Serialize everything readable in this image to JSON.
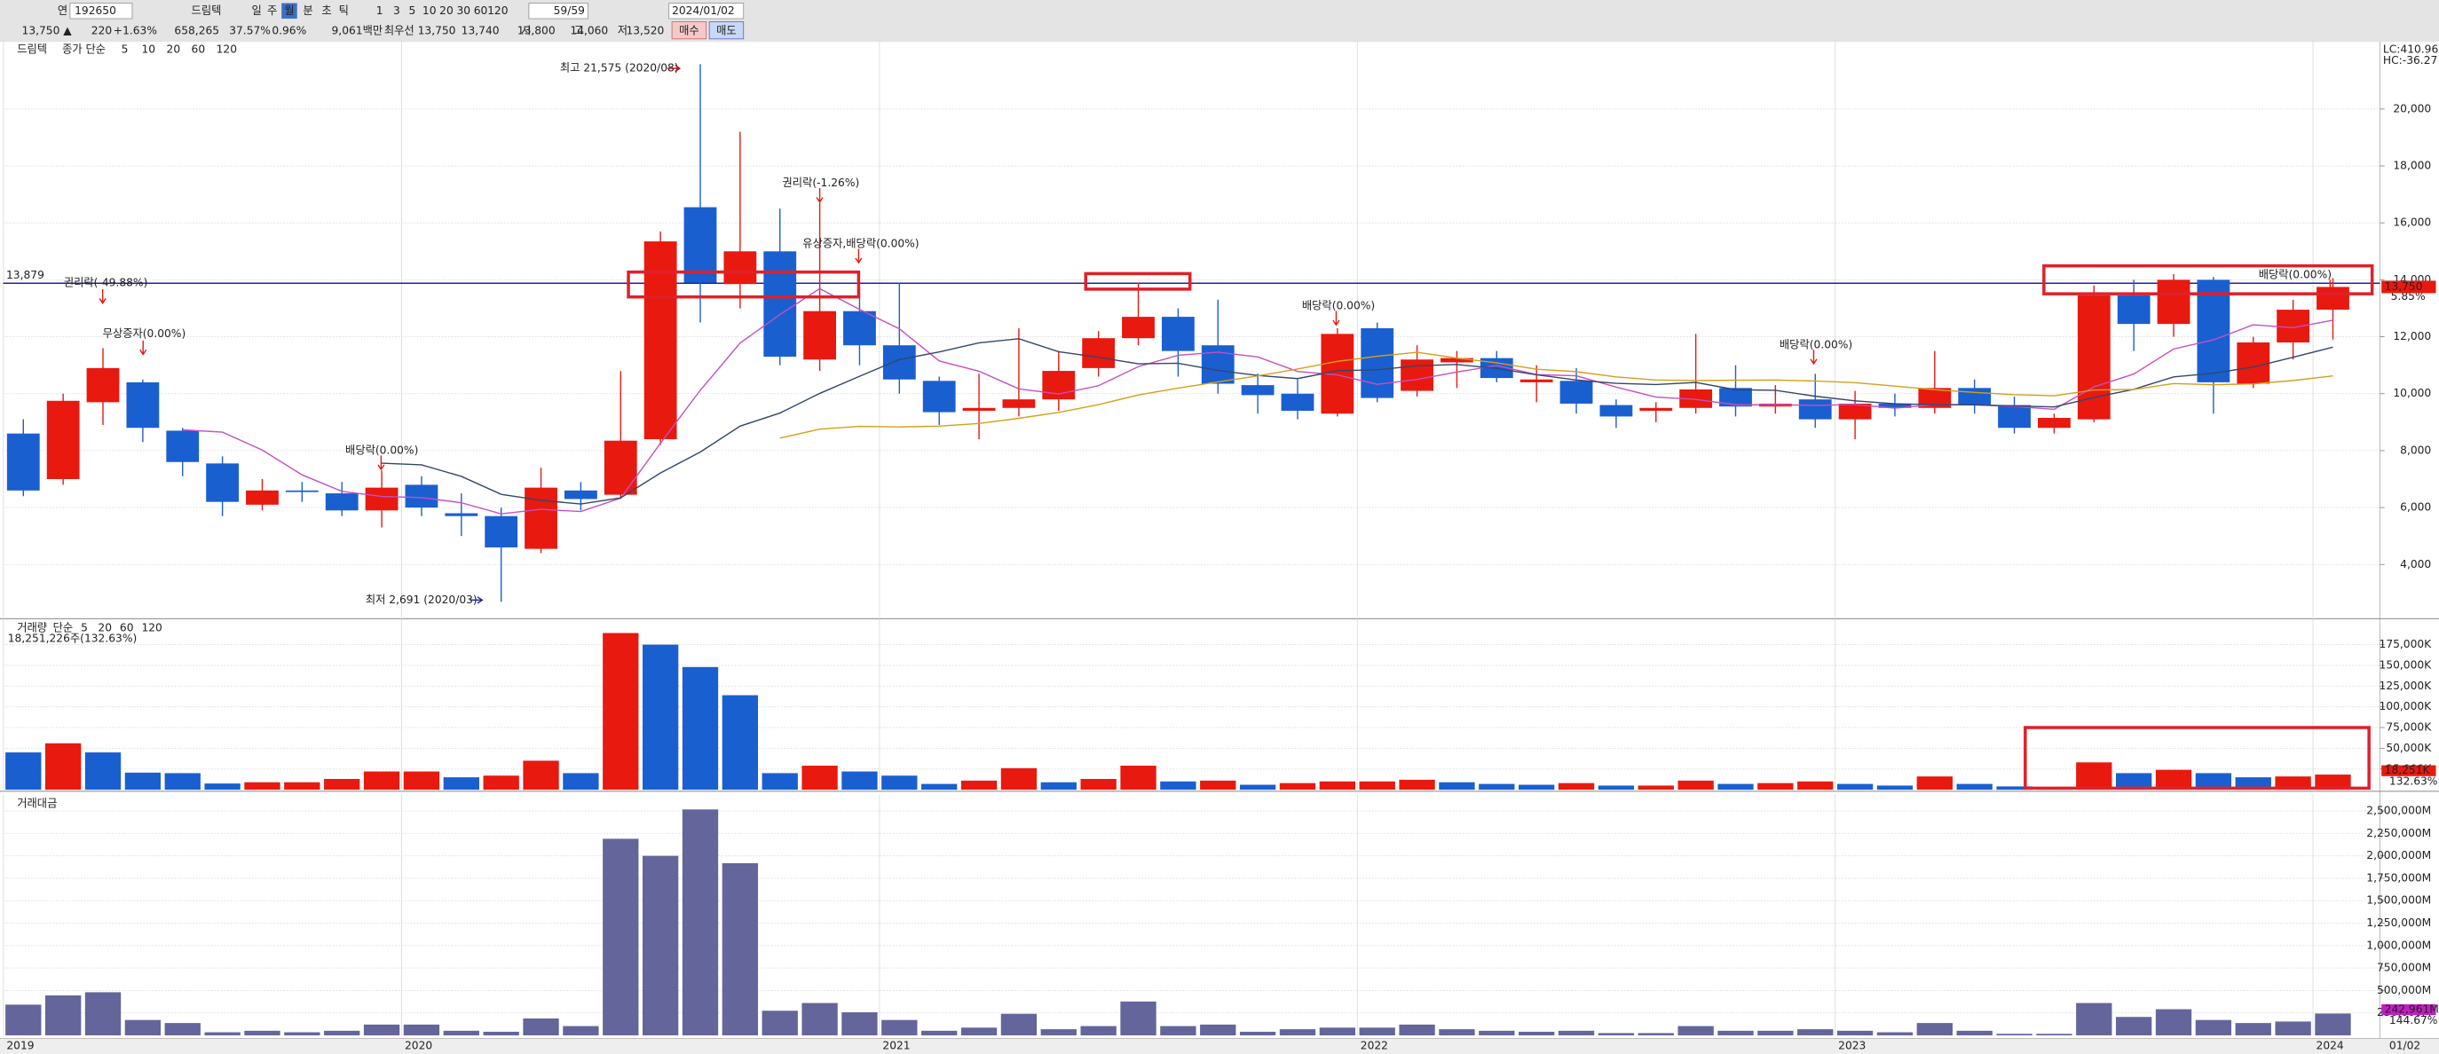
{
  "toolbar": {
    "mode": "연",
    "code": "192650",
    "name": "드림텍",
    "periods": [
      "일",
      "주",
      "월",
      "분",
      "초",
      "틱"
    ],
    "intervals": [
      "1",
      "3",
      "5",
      "10",
      "20",
      "30",
      "60",
      "120"
    ],
    "count": "59/59",
    "date": "2024/01/02",
    "buy": "매수",
    "sell": "매도"
  },
  "quote": {
    "price": "13,750 ▲",
    "change": "220",
    "change_pct": "+1.63%",
    "volume": "658,265",
    "ratio1": "37.57%",
    "ratio2": "0.96%",
    "amount": "9,061백만",
    "best_label": "최우선",
    "ask": "13,750",
    "bid": "13,740",
    "open_label": "시",
    "open": "13,800",
    "high_label": "고",
    "high": "14,060",
    "low_label": "저",
    "low": "13,520"
  },
  "chart_data": [
    {
      "type": "candlestick",
      "title": "드림텍",
      "ma_label": "종가 단순",
      "categories": [
        "2019",
        null,
        null,
        null,
        null,
        null,
        null,
        null,
        null,
        null,
        "2020",
        null,
        null,
        null,
        null,
        null,
        null,
        null,
        null,
        null,
        null,
        null,
        "2021",
        null,
        null,
        null,
        null,
        null,
        null,
        null,
        null,
        null,
        null,
        null,
        "2022",
        null,
        null,
        null,
        null,
        null,
        null,
        null,
        null,
        null,
        null,
        null,
        "2023",
        null,
        null,
        null,
        null,
        null,
        null,
        null,
        null,
        null,
        null,
        null,
        "2024"
      ],
      "x_end_label": "01/02",
      "up_color": "#e8190f",
      "down_color": "#1a5fd0",
      "open": [
        8600,
        7000,
        9700,
        10400,
        8700,
        7550,
        6100,
        6600,
        6500,
        5900,
        6800,
        5800,
        5700,
        4550,
        6600,
        6450,
        8400,
        16550,
        13850,
        15000,
        11200,
        12900,
        11700,
        10450,
        9400,
        9500,
        9800,
        10900,
        11950,
        12700,
        11700,
        10300,
        10000,
        9300,
        12300,
        10100,
        11100,
        11250,
        10400,
        10450,
        9600,
        9400,
        9500,
        10200,
        9550,
        9800,
        9100,
        9650,
        9500,
        10200,
        9600,
        8800,
        9100,
        13450,
        12450,
        14000,
        10350,
        11800,
        12950
      ],
      "high": [
        9100,
        10000,
        11600,
        10500,
        8800,
        7800,
        7000,
        6900,
        6900,
        7300,
        7100,
        6500,
        6000,
        7400,
        6900,
        10800,
        15700,
        21575,
        19200,
        16500,
        16700,
        13800,
        13900,
        10600,
        10700,
        12300,
        11500,
        12200,
        13900,
        13000,
        13300,
        10700,
        10500,
        12300,
        12500,
        11700,
        11500,
        11500,
        11000,
        10900,
        9800,
        9700,
        12100,
        11000,
        10300,
        10700,
        10100,
        10000,
        11500,
        10500,
        9900,
        9300,
        13800,
        14000,
        14200,
        14100,
        12000,
        13300,
        14060
      ],
      "low": [
        6400,
        6800,
        8900,
        8300,
        7100,
        5700,
        5900,
        6200,
        5700,
        5300,
        5700,
        5000,
        2691,
        4400,
        5900,
        6300,
        8200,
        12500,
        13000,
        11000,
        10800,
        11000,
        10000,
        8900,
        8400,
        9200,
        9400,
        10600,
        11700,
        10600,
        10000,
        9300,
        9100,
        9200,
        9700,
        9900,
        10200,
        10400,
        9700,
        9300,
        8800,
        9000,
        9300,
        9200,
        9300,
        8800,
        8400,
        9200,
        9300,
        9300,
        8600,
        8600,
        9000,
        11500,
        12000,
        9300,
        10200,
        11200,
        11900
      ],
      "close": [
        6600,
        9750,
        10900,
        8800,
        7600,
        6200,
        6600,
        6550,
        5900,
        6700,
        6000,
        5700,
        4600,
        6700,
        6300,
        8350,
        15350,
        13900,
        15000,
        11300,
        12900,
        11700,
        10500,
        9350,
        9500,
        9800,
        10800,
        11950,
        12700,
        11500,
        10350,
        9950,
        9400,
        12100,
        9850,
        11200,
        11250,
        10550,
        10500,
        9650,
        9200,
        9500,
        10150,
        9550,
        9650,
        9100,
        9650,
        9500,
        10200,
        9600,
        8800,
        9150,
        13450,
        12450,
        14000,
        10400,
        11800,
        12950,
        13750
      ],
      "series": [
        {
          "name": "5",
          "color": "#c44fc4",
          "values": [
            null,
            null,
            null,
            null,
            8730,
            8650,
            8020,
            7150,
            6570,
            6390,
            6350,
            6170,
            5780,
            5940,
            5860,
            6330,
            8260,
            10120,
            11780,
            12780,
            13690,
            12960,
            12280,
            11150,
            10790,
            10170,
            9990,
            10280,
            10950,
            11350,
            11460,
            11290,
            10780,
            10660,
            10330,
            10500,
            10760,
            10990,
            10670,
            10630,
            10230,
            9880,
            9800,
            9610,
            9610,
            9590,
            9620,
            9490,
            9620,
            9610,
            9550,
            9450,
            10240,
            10690,
            11570,
            11890,
            12420,
            12320,
            12580
          ]
        },
        {
          "name": "10",
          "color": "#33466b",
          "values": [
            null,
            null,
            null,
            null,
            null,
            null,
            null,
            null,
            null,
            7560,
            7500,
            7095,
            6465,
            6255,
            6125,
            6340,
            7215,
            7950,
            8860,
            9320,
            10010,
            10610,
            11200,
            11465,
            11785,
            11930,
            11475,
            11280,
            11050,
            11070,
            10815,
            10640,
            10530,
            10805,
            10840,
            10980,
            11025,
            10885,
            10665,
            10480,
            10365,
            10320,
            10395,
            10140,
            10120,
            9910,
            9750,
            9645,
            9615,
            9610,
            9570,
            9535,
            9865,
            10155,
            10590,
            10720,
            10935,
            11280,
            11635
          ]
        },
        {
          "name": "20",
          "color": "#d4a017",
          "values": [
            null,
            null,
            null,
            null,
            null,
            null,
            null,
            null,
            null,
            null,
            null,
            null,
            null,
            null,
            null,
            null,
            null,
            null,
            null,
            8440,
            8755,
            8853,
            8833,
            8860,
            8955,
            9135,
            9345,
            9615,
            9955,
            10195,
            10413,
            10625,
            10865,
            11135,
            11313,
            11455,
            11250,
            11083,
            10858,
            10775,
            10590,
            10480,
            10463,
            10473,
            10480,
            10445,
            10388,
            10265,
            10140,
            10045,
            9968,
            9928,
            10130,
            10148,
            10355,
            10315,
            10343,
            10463,
            10625
          ]
        },
        {
          "name": "60",
          "color": "#2e9a3e"
        },
        {
          "name": "120",
          "color": "#999999"
        }
      ],
      "ylim": [
        2150,
        22300
      ],
      "yticks": [
        {
          "value": 4000,
          "label": "4,000"
        },
        {
          "value": 6000,
          "label": "6,000"
        },
        {
          "value": 8000,
          "label": "8,000"
        },
        {
          "value": 10000,
          "label": "10,000"
        },
        {
          "value": 12000,
          "label": "12,000"
        },
        {
          "value": 14000,
          "label": "14,000"
        },
        {
          "value": 16000,
          "label": "16,000"
        },
        {
          "value": 18000,
          "label": "18,000"
        },
        {
          "value": 20000,
          "label": "20,000"
        }
      ],
      "grid": true,
      "reference_line": {
        "value": 13879,
        "label": "13,879"
      },
      "annotations": [
        "최고 21,575 (2020/08)",
        "최저 2,691 (2020/03)",
        "권리락(-49.88%)",
        "무상증자(0.00%)",
        "배당락(0.00%)",
        "권리락(-1.26%)",
        "유상증자,배당락(0.00%)",
        "배당락(0.00%)",
        "배당락(0.00%)",
        "배당락(0.00%)"
      ],
      "side_labels": [
        "LC:410.96",
        "HC:-36.27",
        "5.85%"
      ],
      "last_price_label": "13,750"
    },
    {
      "type": "bar",
      "title": "거래량",
      "ma_label": "단순",
      "subtitle": "18,251,226주(132.63%)",
      "series": [
        {
          "name": "5",
          "color": "#c44fc4"
        },
        {
          "name": "20",
          "color": "#d4a017"
        },
        {
          "name": "60",
          "color": "#2e9a3e"
        },
        {
          "name": "120",
          "color": "#999999"
        }
      ],
      "values": [
        45000,
        56000,
        45000,
        20600,
        20000,
        7500,
        9000,
        9000,
        13000,
        22000,
        22000,
        15000,
        17000,
        35000,
        20000,
        189000,
        175000,
        148000,
        114000,
        20000,
        29000,
        22000,
        17000,
        7000,
        11000,
        26000,
        9000,
        13000,
        29000,
        10000,
        11000,
        6000,
        8000,
        10000,
        10000,
        12000,
        9000,
        7000,
        6000,
        8000,
        5000,
        5000,
        11000,
        7000,
        8000,
        10000,
        7000,
        5000,
        16000,
        7000,
        4000,
        3000,
        33000,
        20000,
        24000,
        20000,
        15000,
        16000,
        18251
      ],
      "up_color": "#e8190f",
      "down_color": "#1a5fd0",
      "ylim": [
        0,
        202500
      ],
      "yticks": [
        {
          "value": 25000,
          "label": "25,000K"
        },
        {
          "value": 50000,
          "label": "50,000K"
        },
        {
          "value": 75000,
          "label": "75,000K"
        },
        {
          "value": 100000,
          "label": "100,000K"
        },
        {
          "value": 125000,
          "label": "125,000K"
        },
        {
          "value": 150000,
          "label": "150,000K"
        },
        {
          "value": 175000,
          "label": "175,000K"
        }
      ],
      "grid": true,
      "badge": {
        "label": "18,251K",
        "ratio": "132.63%"
      }
    },
    {
      "type": "bar",
      "title": "거래대금",
      "color": "#64659a",
      "values": [
        342000,
        445000,
        480000,
        171000,
        137000,
        34000,
        51000,
        34000,
        51000,
        120000,
        120000,
        51000,
        40000,
        188000,
        103000,
        2190000,
        2000000,
        2517000,
        1918000,
        274000,
        360000,
        257000,
        171000,
        51000,
        86000,
        240000,
        68000,
        103000,
        377000,
        103000,
        120000,
        40000,
        68000,
        86000,
        86000,
        120000,
        68000,
        51000,
        40000,
        51000,
        25000,
        25000,
        103000,
        51000,
        51000,
        68000,
        51000,
        34000,
        137000,
        51000,
        17000,
        17000,
        360000,
        205000,
        291000,
        171000,
        137000,
        154000,
        242961
      ],
      "ylim": [
        0,
        2650000
      ],
      "yticks": [
        {
          "value": 250000,
          "label": "250,000M"
        },
        {
          "value": 500000,
          "label": "500,000M"
        },
        {
          "value": 750000,
          "label": "750,000M"
        },
        {
          "value": 1000000,
          "label": "1,000,000M"
        },
        {
          "value": 1250000,
          "label": "1,250,000M"
        },
        {
          "value": 1500000,
          "label": "1,500,000M"
        },
        {
          "value": 1750000,
          "label": "1,750,000M"
        },
        {
          "value": 2000000,
          "label": "2,000,000M"
        },
        {
          "value": 2250000,
          "label": "2,250,000M"
        },
        {
          "value": 2500000,
          "label": "2,500,000M"
        }
      ],
      "grid": true,
      "badge": {
        "label": "242,961M",
        "ratio": "144.67%"
      }
    }
  ]
}
